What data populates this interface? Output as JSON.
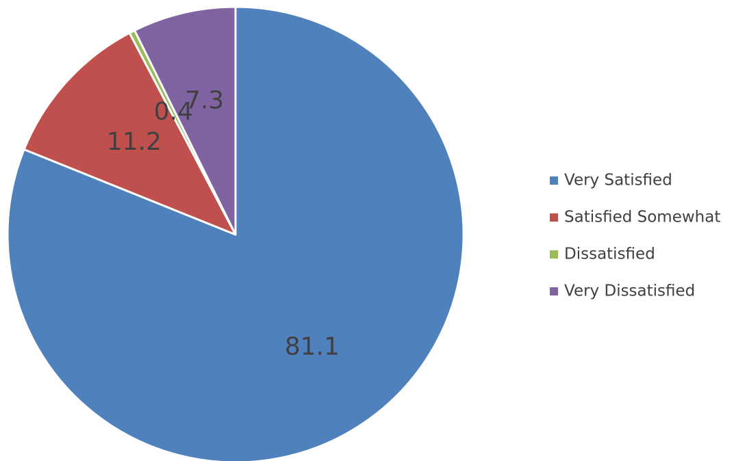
{
  "chart_data": {
    "type": "pie",
    "categories": [
      "Very Satisfied",
      "Satisfied Somewhat",
      "Dissatisfied",
      "Very Dissatisfied"
    ],
    "values": [
      81.1,
      11.2,
      0.4,
      7.3
    ],
    "colors": [
      "#4f81bd",
      "#c0504d",
      "#9bbb59",
      "#8064a2"
    ],
    "legend": "right"
  }
}
